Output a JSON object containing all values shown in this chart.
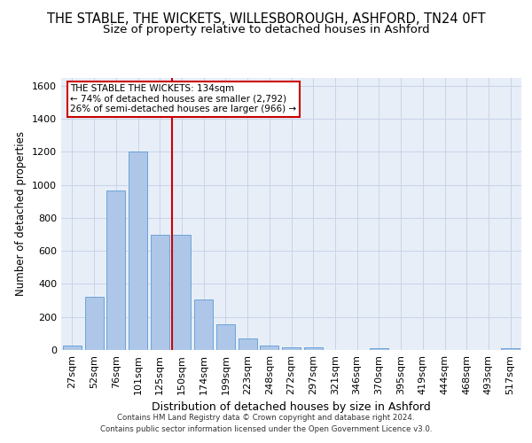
{
  "title": "THE STABLE, THE WICKETS, WILLESBOROUGH, ASHFORD, TN24 0FT",
  "subtitle": "Size of property relative to detached houses in Ashford",
  "xlabel": "Distribution of detached houses by size in Ashford",
  "ylabel": "Number of detached properties",
  "categories": [
    "27sqm",
    "52sqm",
    "76sqm",
    "101sqm",
    "125sqm",
    "150sqm",
    "174sqm",
    "199sqm",
    "223sqm",
    "248sqm",
    "272sqm",
    "297sqm",
    "321sqm",
    "346sqm",
    "370sqm",
    "395sqm",
    "419sqm",
    "444sqm",
    "468sqm",
    "493sqm",
    "517sqm"
  ],
  "values": [
    28,
    320,
    968,
    1200,
    700,
    700,
    305,
    153,
    70,
    28,
    18,
    14,
    0,
    0,
    12,
    0,
    0,
    0,
    0,
    0,
    12
  ],
  "bar_color": "#aec6e8",
  "bar_edge_color": "#5b9bd5",
  "grid_color": "#c8d4e8",
  "background_color": "#e8eef8",
  "ref_line_x": 4.55,
  "ref_line_color": "#cc0000",
  "annotation_text": "THE STABLE THE WICKETS: 134sqm\n← 74% of detached houses are smaller (2,792)\n26% of semi-detached houses are larger (966) →",
  "annotation_box_color": "#cc0000",
  "footer_line1": "Contains HM Land Registry data © Crown copyright and database right 2024.",
  "footer_line2": "Contains public sector information licensed under the Open Government Licence v3.0.",
  "ylim": [
    0,
    1650
  ],
  "yticks": [
    0,
    200,
    400,
    600,
    800,
    1000,
    1200,
    1400,
    1600
  ],
  "title_fontsize": 10.5,
  "subtitle_fontsize": 9.5,
  "xlabel_fontsize": 9,
  "ylabel_fontsize": 8.5,
  "tick_fontsize": 8,
  "annotation_fontsize": 7.5,
  "footer_fontsize": 6.2
}
